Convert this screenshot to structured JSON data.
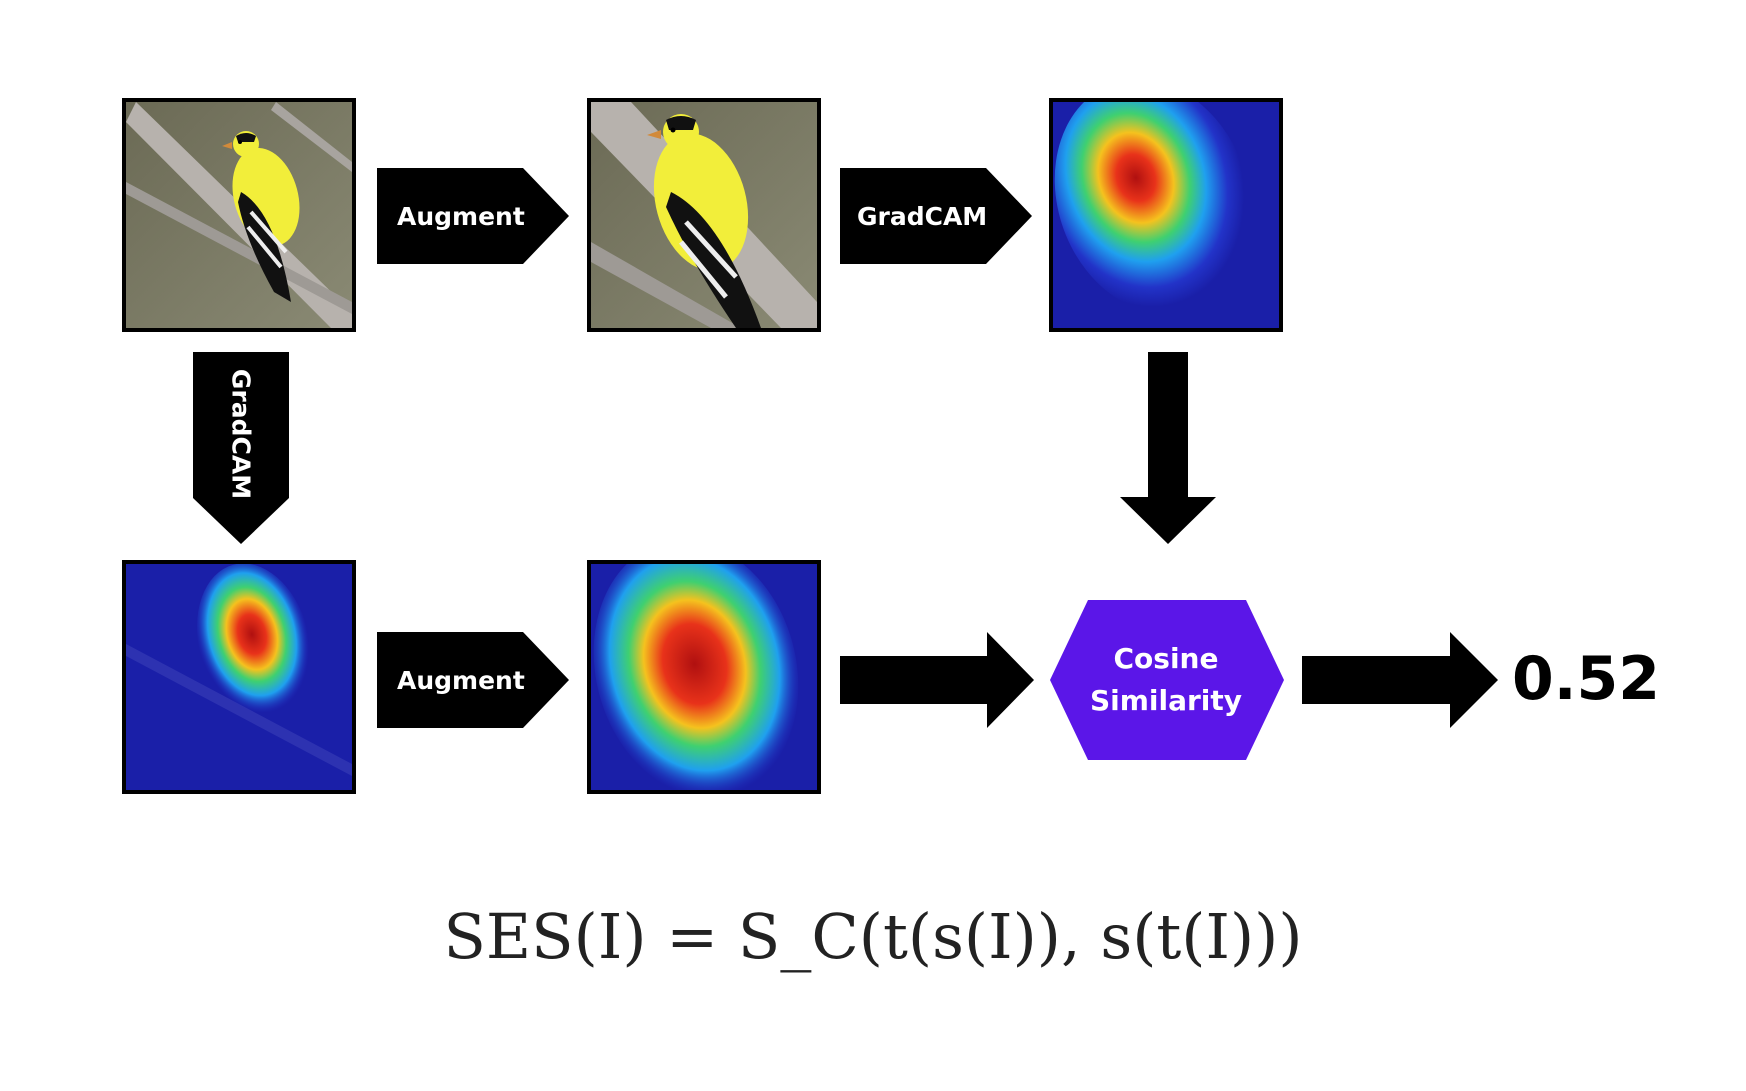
{
  "labels": {
    "augment_top": "Augment",
    "gradcam_top": "GradCAM",
    "gradcam_left": "GradCAM",
    "augment_bottom": "Augment"
  },
  "similarity": {
    "line1": "Cosine",
    "line2": "Similarity"
  },
  "result": "0.52",
  "formula": "SES(I) = S_C(t(s(I)), s(t(I)))",
  "colors": {
    "hexagon": "#5b16e8",
    "arrow": "#000000",
    "bird_yellow": "#f2ee3a",
    "heatmap_blue": "#1a1fa8"
  }
}
